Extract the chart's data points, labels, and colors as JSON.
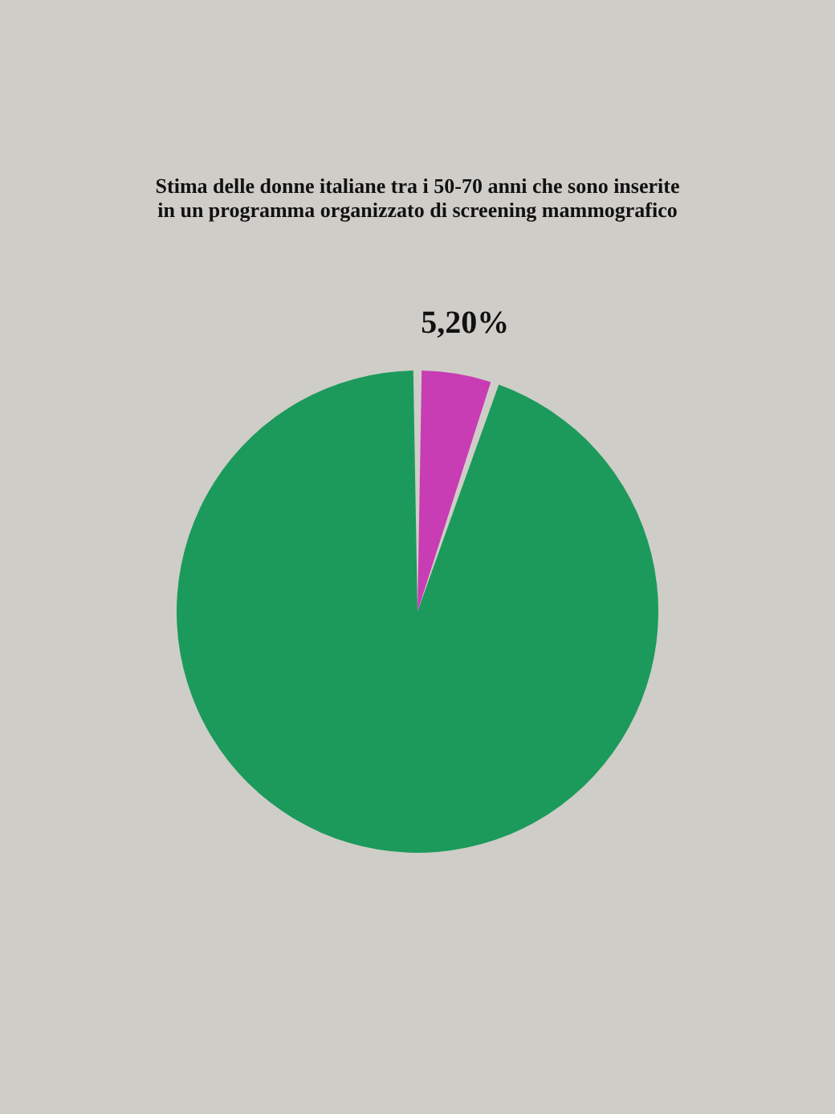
{
  "chart_data": {
    "type": "pie",
    "title": [
      "Stima delle donne italiane tra i 50-70 anni che sono inserite",
      "in un programma organizzato di screening mammografico"
    ],
    "categories": [
      null,
      null
    ],
    "values": [
      5.2,
      94.8
    ],
    "colors": [
      "#c83cb4",
      "#1b9a5c"
    ],
    "value_labels": [
      "5,20%",
      null
    ],
    "legend": false
  }
}
